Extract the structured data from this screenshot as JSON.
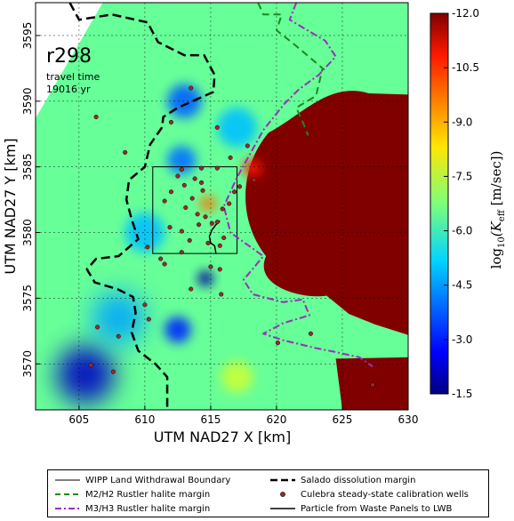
{
  "chart_data": {
    "type": "heatmap",
    "annotation": {
      "run_label": "r298",
      "travel_time_label": "travel time",
      "travel_time_value": "19016 yr"
    },
    "xlabel": "UTM NAD27 X [km]",
    "ylabel": "UTM NAD27 Y [km]",
    "xlim": [
      601.7,
      630.0
    ],
    "ylim": [
      3566.5,
      3597.5
    ],
    "xticks": [
      605,
      610,
      615,
      620,
      625,
      630
    ],
    "yticks": [
      3570,
      3575,
      3580,
      3585,
      3590,
      3595
    ],
    "grid": true,
    "colorbar": {
      "label_prefix": "log",
      "label_sub": "10",
      "label_main": "(K",
      "label_k_sub": "eff",
      "label_unit": " [m/sec])",
      "range": [
        -12.0,
        -1.5
      ],
      "ticks": [
        "-1.5",
        "-3.0",
        "-4.5",
        "-6.0",
        "-7.5",
        "-9.0",
        "-10.5",
        "-12.0"
      ],
      "tick_values": [
        -1.5,
        -3.0,
        -4.5,
        -6.0,
        -7.5,
        -9.0,
        -10.5,
        -12.0
      ],
      "colormap": "jet"
    },
    "field": {
      "background_value": -6.5,
      "low_region_value": -12.0,
      "high_spots": [
        {
          "x": 605.5,
          "y": 3569.2,
          "r": 2.2,
          "v": -2.2
        },
        {
          "x": 612.5,
          "y": 3572.6,
          "r": 1.0,
          "v": -3.2
        },
        {
          "x": 612.8,
          "y": 3585.5,
          "r": 1.1,
          "v": -4.0
        },
        {
          "x": 614.6,
          "y": 3576.5,
          "r": 0.6,
          "v": -1.8
        },
        {
          "x": 613.0,
          "y": 3590.0,
          "r": 1.3,
          "v": -3.8
        },
        {
          "x": 617.0,
          "y": 3588.0,
          "r": 1.5,
          "v": -4.8
        },
        {
          "x": 608.0,
          "y": 3573.5,
          "r": 2.0,
          "v": -4.5
        },
        {
          "x": 610.0,
          "y": 3580.0,
          "r": 1.5,
          "v": -4.8
        }
      ],
      "low_spots": [
        {
          "x": 618.2,
          "y": 3584.9,
          "r": 0.7,
          "v": -10.5
        },
        {
          "x": 614.8,
          "y": 3582.2,
          "r": 0.6,
          "v": -9.5
        },
        {
          "x": 617.0,
          "y": 3569.0,
          "r": 1.2,
          "v": -7.5
        }
      ]
    },
    "series": [
      {
        "name": "WIPP Land Withdrawal Boundary",
        "style": "solid-thin",
        "color": "#000000",
        "x": [
          610.6,
          617.0,
          617.0,
          610.6,
          610.6
        ],
        "y": [
          3585.0,
          3585.0,
          3578.4,
          3578.4,
          3585.0
        ]
      },
      {
        "name": "Salado dissolution margin",
        "style": "dashed-thick",
        "color": "#000000",
        "x": [
          604.3,
          605.0,
          607.5,
          610.2,
          611.0,
          612.0,
          613.0,
          614.5,
          615.3,
          615.2,
          612.5,
          611.4,
          611.3,
          610.4,
          610.0,
          608.8,
          608.6,
          609.0,
          609.5,
          608.0,
          606.3,
          605.6,
          606.2,
          607.9,
          609.1,
          609.3,
          609.0,
          609.5,
          610.8,
          611.7,
          611.7
        ],
        "y": [
          3597.5,
          3596.2,
          3596.6,
          3596.0,
          3594.5,
          3594.0,
          3593.5,
          3593.5,
          3592.0,
          3590.7,
          3589.5,
          3588.8,
          3588.0,
          3586.7,
          3585.0,
          3584.0,
          3582.5,
          3581.0,
          3579.5,
          3578.2,
          3578.0,
          3577.2,
          3576.2,
          3575.7,
          3575.1,
          3573.9,
          3572.4,
          3571.0,
          3570.0,
          3569.0,
          3566.5
        ]
      },
      {
        "name": "M2/H2 Rustler halite margin",
        "style": "dashed",
        "color": "#1a8a1a",
        "x": [
          618.6,
          619.0,
          620.4,
          620.0,
          621.5,
          623.5,
          623.0,
          621.5,
          622.0,
          622.4
        ],
        "y": [
          3597.5,
          3596.6,
          3596.6,
          3595.4,
          3594.2,
          3592.5,
          3590.4,
          3589.5,
          3588.4,
          3587.4
        ]
      },
      {
        "name": "M3/H3 Rustler halite margin",
        "style": "dashdot",
        "color": "#9b2eb8",
        "x": [
          621.5,
          621.0,
          623.7,
          624.5,
          623.2,
          621.7,
          620.6,
          619.0,
          617.0,
          616.0,
          616.5,
          619.0,
          617.5,
          618.2,
          620.5,
          622.0,
          622.5,
          620.5,
          619.0,
          620.5,
          623.0,
          624.5,
          626.3,
          627.3
        ],
        "y": [
          3597.5,
          3596.2,
          3594.6,
          3593.4,
          3592.0,
          3590.9,
          3589.8,
          3587.8,
          3584.2,
          3582.0,
          3580.0,
          3578.2,
          3576.4,
          3575.3,
          3574.7,
          3574.9,
          3573.7,
          3573.1,
          3572.3,
          3571.8,
          3571.2,
          3570.9,
          3570.5,
          3569.8
        ]
      },
      {
        "name": "Particle from Waste Panels to LWB",
        "style": "solid",
        "color": "#000000",
        "x": [
          615.7,
          615.4,
          615.1,
          614.9,
          615.0,
          615.3,
          615.4
        ],
        "y": [
          3580.9,
          3580.6,
          3580.2,
          3579.7,
          3579.2,
          3579.0,
          3578.4
        ]
      },
      {
        "name": "Culebra steady-state calibration wells",
        "style": "markers",
        "color": "#a0282a",
        "x": [
          606.3,
          608.5,
          612.0,
          613.5,
          615.5,
          612.8,
          616.5,
          615.5,
          617.8,
          612.5,
          613.8,
          614.3,
          613.0,
          613.6,
          614.4,
          612.0,
          611.5,
          613.1,
          614.0,
          614.6,
          615.1,
          615.9,
          616.4,
          616.8,
          617.2,
          618.3,
          611.9,
          612.8,
          614.1,
          615.5,
          613.4,
          614.8,
          616.0,
          615.0,
          615.7,
          612.8,
          611.2,
          610.2,
          611.5,
          615.8,
          613.5,
          610.0,
          610.3,
          606.4,
          608.0,
          605.9,
          607.6,
          622.6,
          627.3,
          615.7,
          620.1,
          614.3
        ],
        "y": [
          3588.8,
          3586.1,
          3588.4,
          3591.0,
          3588.0,
          3584.8,
          3585.7,
          3584.9,
          3586.6,
          3584.3,
          3584.1,
          3583.8,
          3583.6,
          3582.6,
          3583.2,
          3583.1,
          3582.4,
          3581.9,
          3581.4,
          3581.2,
          3580.7,
          3581.8,
          3582.2,
          3583.1,
          3583.5,
          3584.0,
          3580.4,
          3580.1,
          3580.6,
          3580.8,
          3579.4,
          3579.2,
          3579.6,
          3577.4,
          3577.2,
          3578.5,
          3578.0,
          3578.9,
          3577.6,
          3575.3,
          3575.7,
          3574.5,
          3573.4,
          3572.8,
          3572.1,
          3569.9,
          3569.4,
          3572.3,
          3568.4,
          3579.0,
          3571.6,
          3584.9
        ]
      }
    ],
    "legend": {
      "placement": "bottom",
      "entries": [
        "WIPP Land Withdrawal Boundary",
        "Salado dissolution margin",
        "M2/H2 Rustler halite margin",
        "Culebra steady-state calibration wells",
        "M3/H3 Rustler halite margin",
        "Particle from Waste Panels to LWB"
      ]
    },
    "colors": {
      "axis": "#000000",
      "grid": "#000000",
      "outside": "#ffffff"
    }
  }
}
